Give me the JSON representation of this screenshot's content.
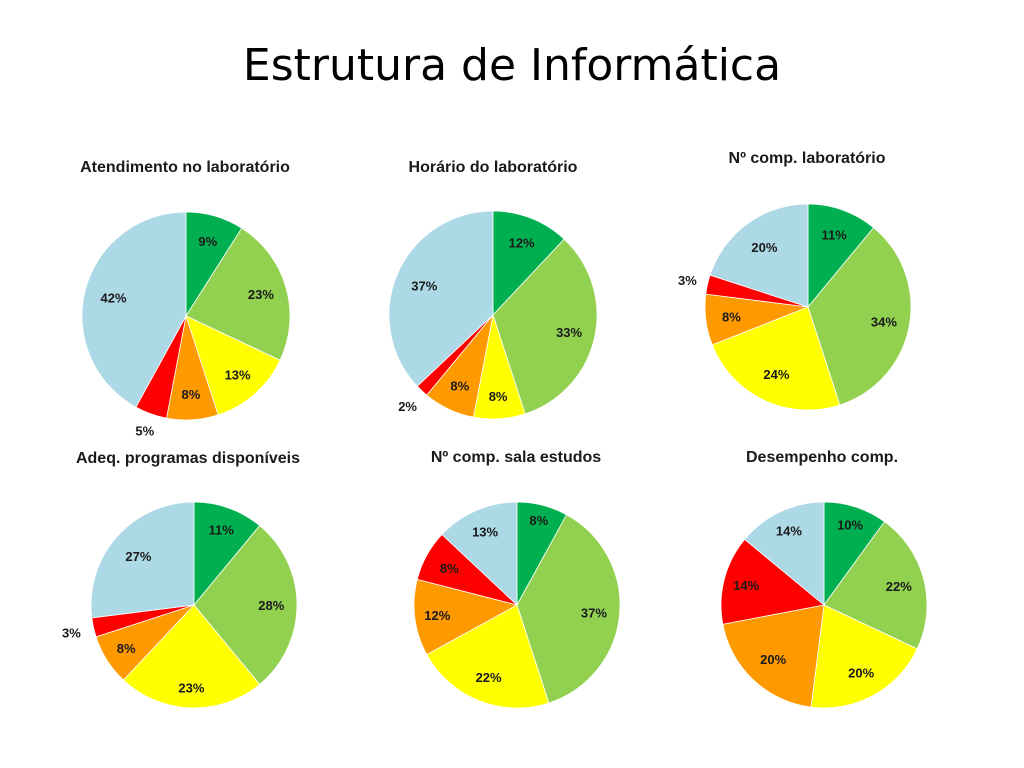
{
  "slide": {
    "title": "Estrutura de Informática"
  },
  "category_colors": [
    "#00b050",
    "#92d050",
    "#ffff00",
    "#ff9900",
    "#ff0000",
    "#add8e6"
  ],
  "chart_data": [
    {
      "type": "pie",
      "title": "Atendimento no laboratório",
      "values": [
        9,
        23,
        13,
        8,
        5,
        42
      ],
      "labels": [
        "9%",
        "23%",
        "13%",
        "8%",
        "5%",
        "42%"
      ],
      "colors": [
        "#00b050",
        "#92d050",
        "#ffff00",
        "#ff9900",
        "#ff0000",
        "#add8e6"
      ]
    },
    {
      "type": "pie",
      "title": "Horário do laboratório",
      "values": [
        12,
        33,
        8,
        8,
        2,
        37
      ],
      "labels": [
        "12%",
        "33%",
        "8%",
        "8%",
        "2%",
        "37%"
      ],
      "colors": [
        "#00b050",
        "#92d050",
        "#ffff00",
        "#ff9900",
        "#ff0000",
        "#add8e6"
      ]
    },
    {
      "type": "pie",
      "title": "Nº comp. laboratório",
      "values": [
        11,
        34,
        24,
        8,
        3,
        20
      ],
      "labels": [
        "11%",
        "34%",
        "24%",
        "8%",
        "3%",
        "20%"
      ],
      "colors": [
        "#00b050",
        "#92d050",
        "#ffff00",
        "#ff9900",
        "#ff0000",
        "#add8e6"
      ]
    },
    {
      "type": "pie",
      "title": "Adeq. programas disponíveis",
      "values": [
        11,
        28,
        23,
        8,
        3,
        27
      ],
      "labels": [
        "11%",
        "28%",
        "23%",
        "8%",
        "3%",
        "27%"
      ],
      "colors": [
        "#00b050",
        "#92d050",
        "#ffff00",
        "#ff9900",
        "#ff0000",
        "#add8e6"
      ]
    },
    {
      "type": "pie",
      "title": "Nº comp. sala estudos",
      "values": [
        8,
        37,
        22,
        12,
        8,
        13
      ],
      "labels": [
        "8%",
        "37%",
        "22%",
        "12%",
        "8%",
        "13%"
      ],
      "colors": [
        "#00b050",
        "#92d050",
        "#ffff00",
        "#ff9900",
        "#ff0000",
        "#add8e6"
      ]
    },
    {
      "type": "pie",
      "title": "Desempenho comp.",
      "values": [
        10,
        22,
        20,
        20,
        14,
        14
      ],
      "labels": [
        "10%",
        "22%",
        "20%",
        "20%",
        "14%",
        "14%"
      ],
      "colors": [
        "#00b050",
        "#92d050",
        "#ffff00",
        "#ff9900",
        "#ff0000",
        "#add8e6"
      ]
    }
  ]
}
